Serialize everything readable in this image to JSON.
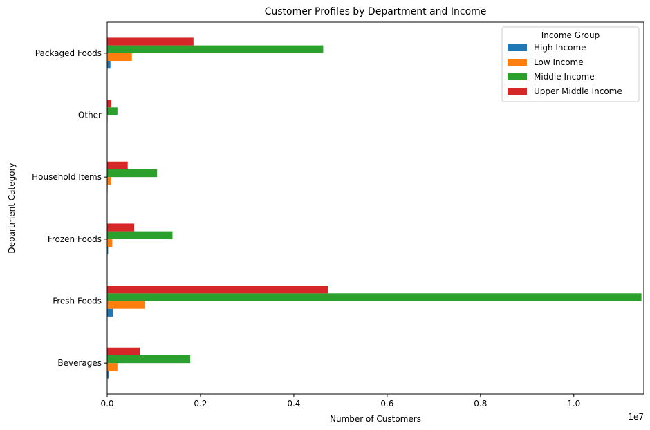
{
  "chart_data": {
    "type": "bar",
    "orientation": "horizontal",
    "title": "Customer Profiles by Department and Income",
    "xlabel": "Number of Customers",
    "ylabel": "Department Category",
    "x_offset_text": "1e7",
    "xlim": [
      0,
      1.15
    ],
    "x_ticks": [
      0.0,
      0.2,
      0.4,
      0.6,
      0.8,
      1.0
    ],
    "x_tick_labels": [
      "0.0",
      "0.2",
      "0.4",
      "0.6",
      "0.8",
      "1.0"
    ],
    "categories": [
      "Beverages",
      "Fresh Foods",
      "Frozen Foods",
      "Household Items",
      "Other",
      "Packaged Foods"
    ],
    "series": [
      {
        "name": "High Income",
        "color": "#1f77b4",
        "values": [
          0.003,
          0.012,
          0.002,
          0.001,
          0.0005,
          0.007
        ]
      },
      {
        "name": "Low Income",
        "color": "#ff7f0e",
        "values": [
          0.022,
          0.08,
          0.011,
          0.008,
          0.001,
          0.053
        ]
      },
      {
        "name": "Middle Income",
        "color": "#2ca02c",
        "values": [
          0.178,
          1.145,
          0.14,
          0.107,
          0.022,
          0.463
        ]
      },
      {
        "name": "Upper Middle Income",
        "color": "#d62728",
        "values": [
          0.07,
          0.473,
          0.058,
          0.044,
          0.009,
          0.185
        ]
      }
    ],
    "legend": {
      "title": "Income Group",
      "position": "upper-right"
    },
    "grid": false
  }
}
